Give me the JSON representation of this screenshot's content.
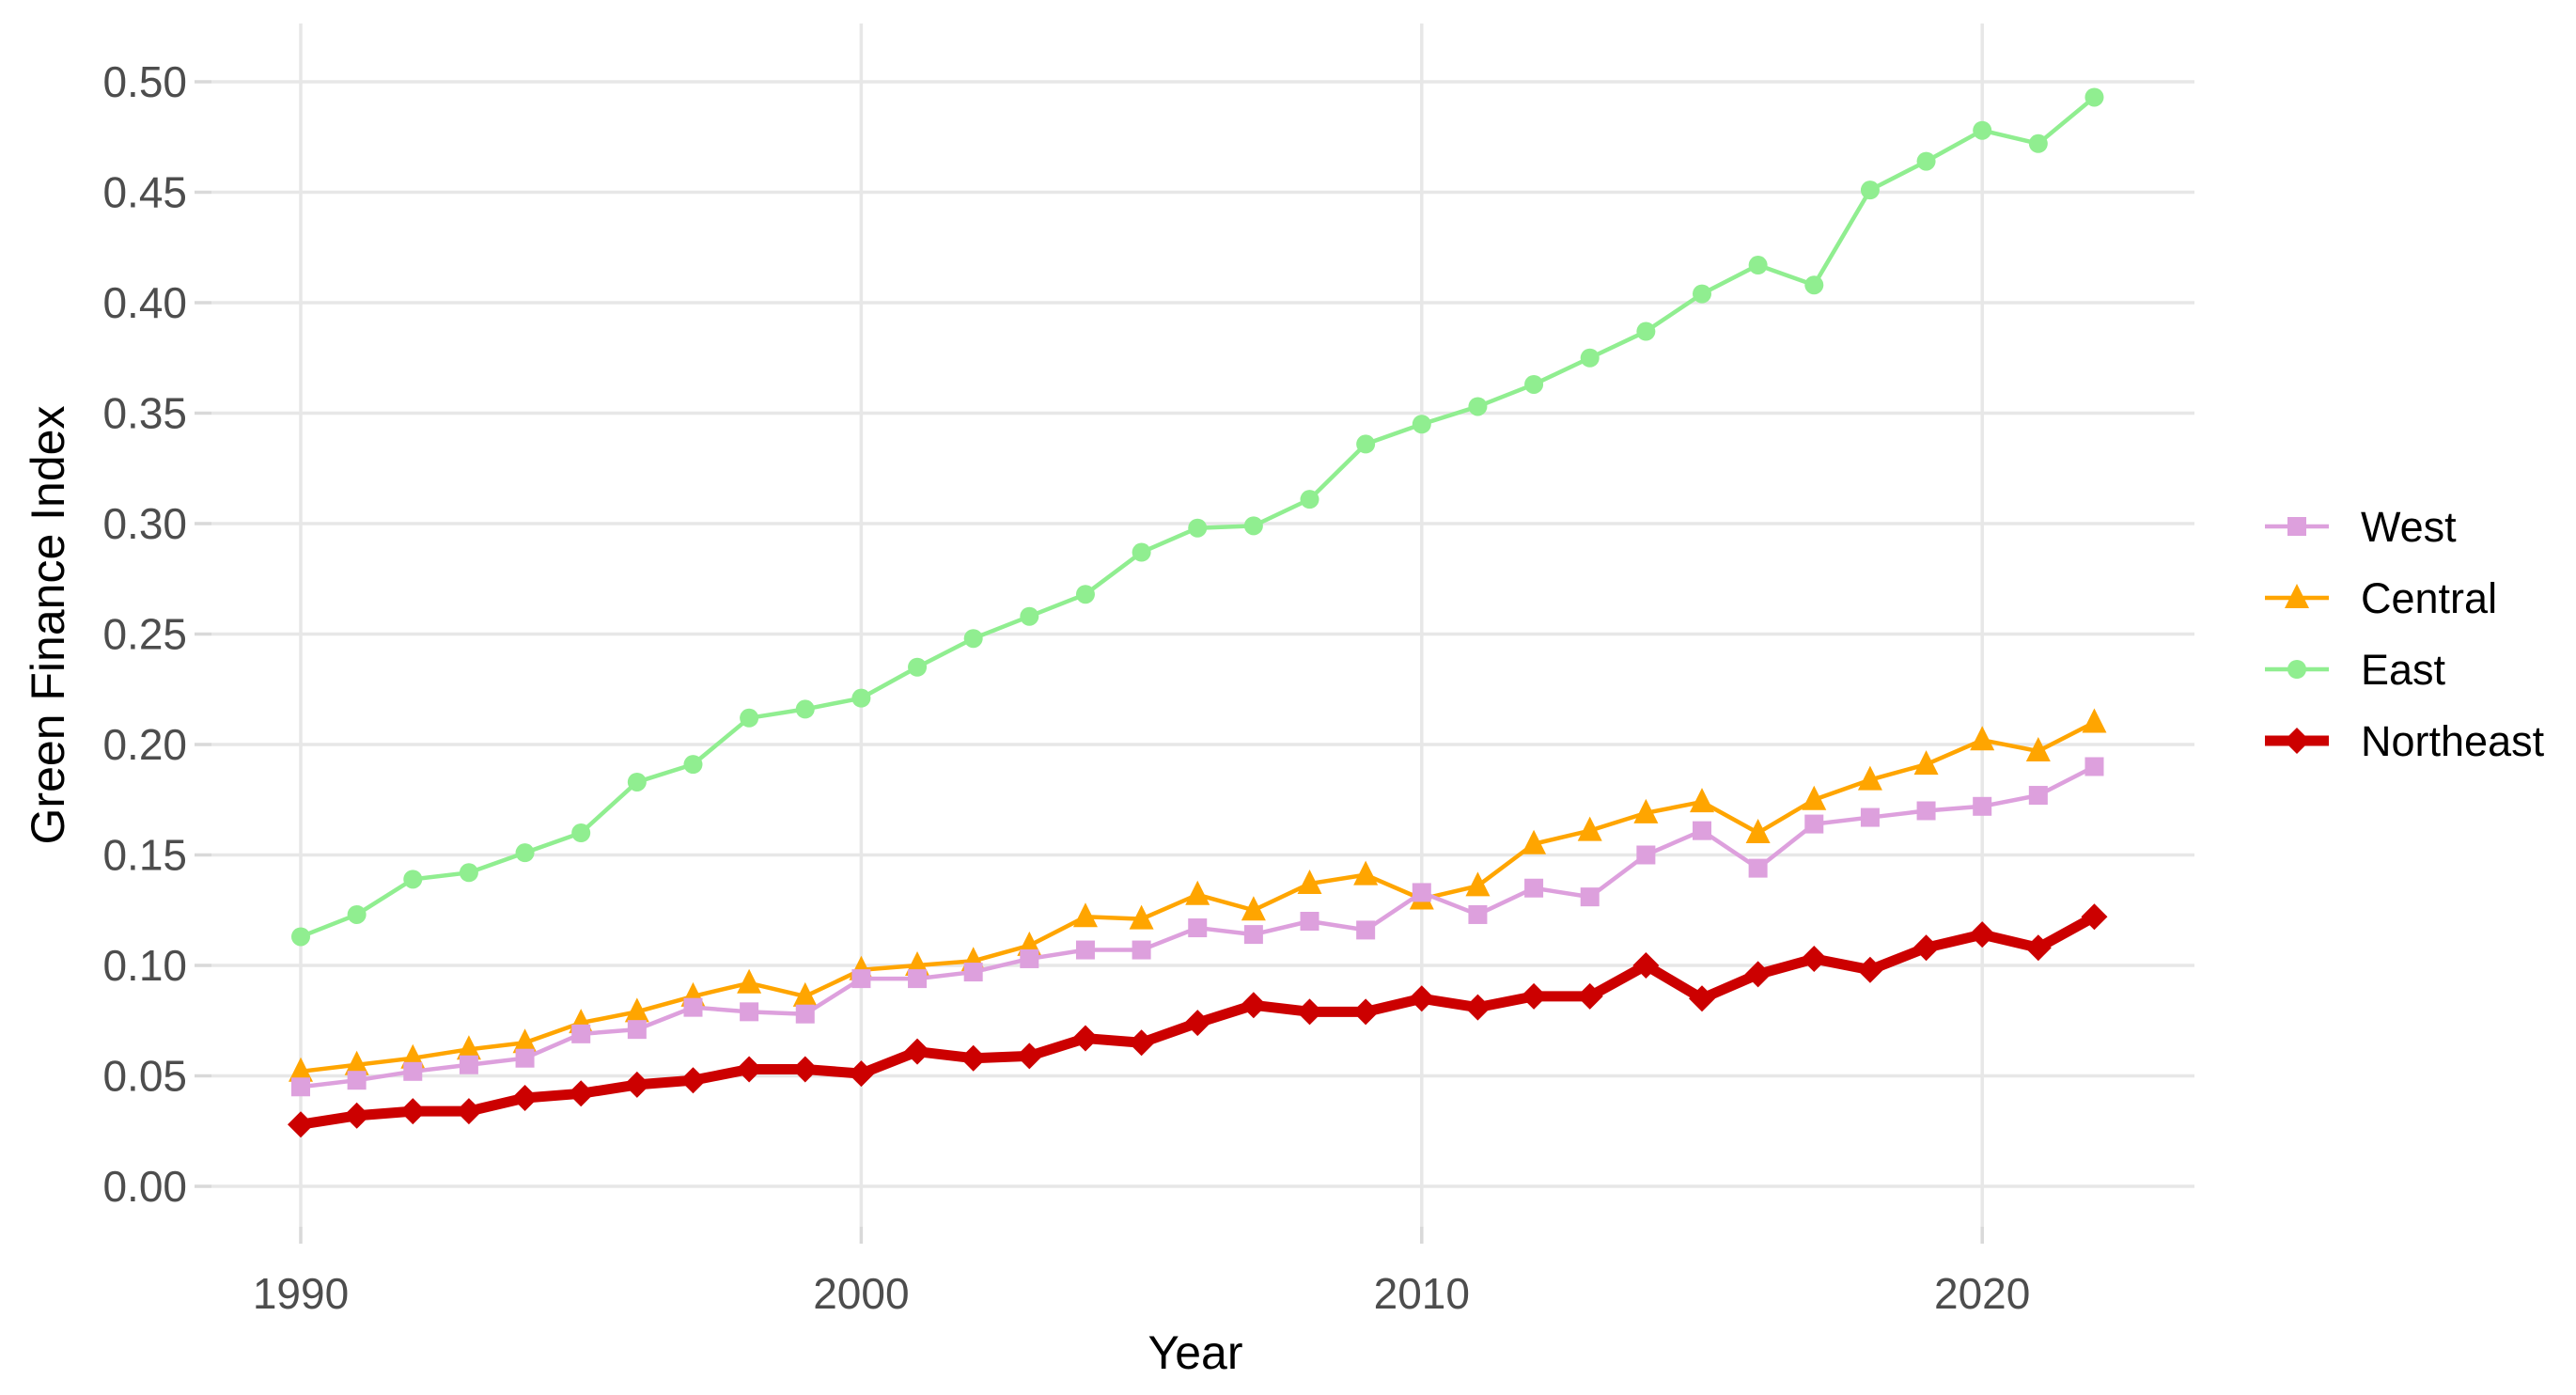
{
  "figure": {
    "background_color": "#FFFFFF",
    "grid_color": "#E7E7E7",
    "tick_mark_color": "#D9D9D9",
    "axis_text_color": "#4D4D4D",
    "title_text_color": "#000000"
  },
  "chart_data": {
    "type": "line",
    "title": "",
    "xlabel": "Year",
    "ylabel": "Green Finance Index",
    "x": [
      1990,
      1991,
      1992,
      1993,
      1994,
      1995,
      1996,
      1997,
      1998,
      1999,
      2000,
      2001,
      2002,
      2003,
      2004,
      2005,
      2006,
      2007,
      2008,
      2009,
      2010,
      2011,
      2012,
      2013,
      2014,
      2015,
      2016,
      2017,
      2018,
      2019,
      2020,
      2021,
      2022
    ],
    "x_ticks": [
      1990,
      2000,
      2010,
      2020
    ],
    "y_ticks": [
      0.0,
      0.05,
      0.1,
      0.15,
      0.2,
      0.25,
      0.3,
      0.35,
      0.4,
      0.45,
      0.5
    ],
    "xlim": [
      1988.4,
      2023.8
    ],
    "ylim": [
      -0.018,
      0.526
    ],
    "grid": true,
    "legend_position": "right",
    "legend_order": [
      "West",
      "Central",
      "East",
      "Northeast"
    ],
    "series": [
      {
        "name": "West",
        "color": "#DDA0DD",
        "marker": "square",
        "line_width": 4.5,
        "values": [
          0.045,
          0.048,
          0.052,
          0.055,
          0.058,
          0.069,
          0.071,
          0.081,
          0.079,
          0.078,
          0.094,
          0.094,
          0.097,
          0.103,
          0.107,
          0.107,
          0.117,
          0.114,
          0.12,
          0.116,
          0.133,
          0.123,
          0.135,
          0.131,
          0.15,
          0.161,
          0.144,
          0.164,
          0.167,
          0.17,
          0.172,
          0.177,
          0.19
        ]
      },
      {
        "name": "Central",
        "color": "#FFA500",
        "marker": "triangle",
        "line_width": 4.5,
        "values": [
          0.052,
          0.055,
          0.058,
          0.062,
          0.065,
          0.074,
          0.079,
          0.086,
          0.092,
          0.086,
          0.098,
          0.1,
          0.102,
          0.109,
          0.122,
          0.121,
          0.132,
          0.125,
          0.137,
          0.141,
          0.13,
          0.136,
          0.155,
          0.161,
          0.169,
          0.174,
          0.16,
          0.175,
          0.184,
          0.191,
          0.202,
          0.197,
          0.21
        ]
      },
      {
        "name": "East",
        "color": "#90EE90",
        "marker": "circle",
        "line_width": 4.5,
        "values": [
          0.113,
          0.123,
          0.139,
          0.142,
          0.151,
          0.16,
          0.183,
          0.191,
          0.212,
          0.216,
          0.221,
          0.235,
          0.248,
          0.258,
          0.268,
          0.287,
          0.298,
          0.299,
          0.311,
          0.336,
          0.345,
          0.353,
          0.363,
          0.375,
          0.387,
          0.404,
          0.417,
          0.408,
          0.451,
          0.464,
          0.478,
          0.472,
          0.493
        ]
      },
      {
        "name": "Northeast",
        "color": "#CC0000",
        "marker": "diamond",
        "line_width": 11,
        "values": [
          0.028,
          0.032,
          0.034,
          0.034,
          0.04,
          0.042,
          0.046,
          0.048,
          0.053,
          0.053,
          0.051,
          0.061,
          0.058,
          0.059,
          0.067,
          0.065,
          0.074,
          0.082,
          0.079,
          0.079,
          0.085,
          0.081,
          0.086,
          0.086,
          0.1,
          0.085,
          0.096,
          0.103,
          0.098,
          0.108,
          0.114,
          0.108,
          0.122
        ]
      }
    ]
  }
}
